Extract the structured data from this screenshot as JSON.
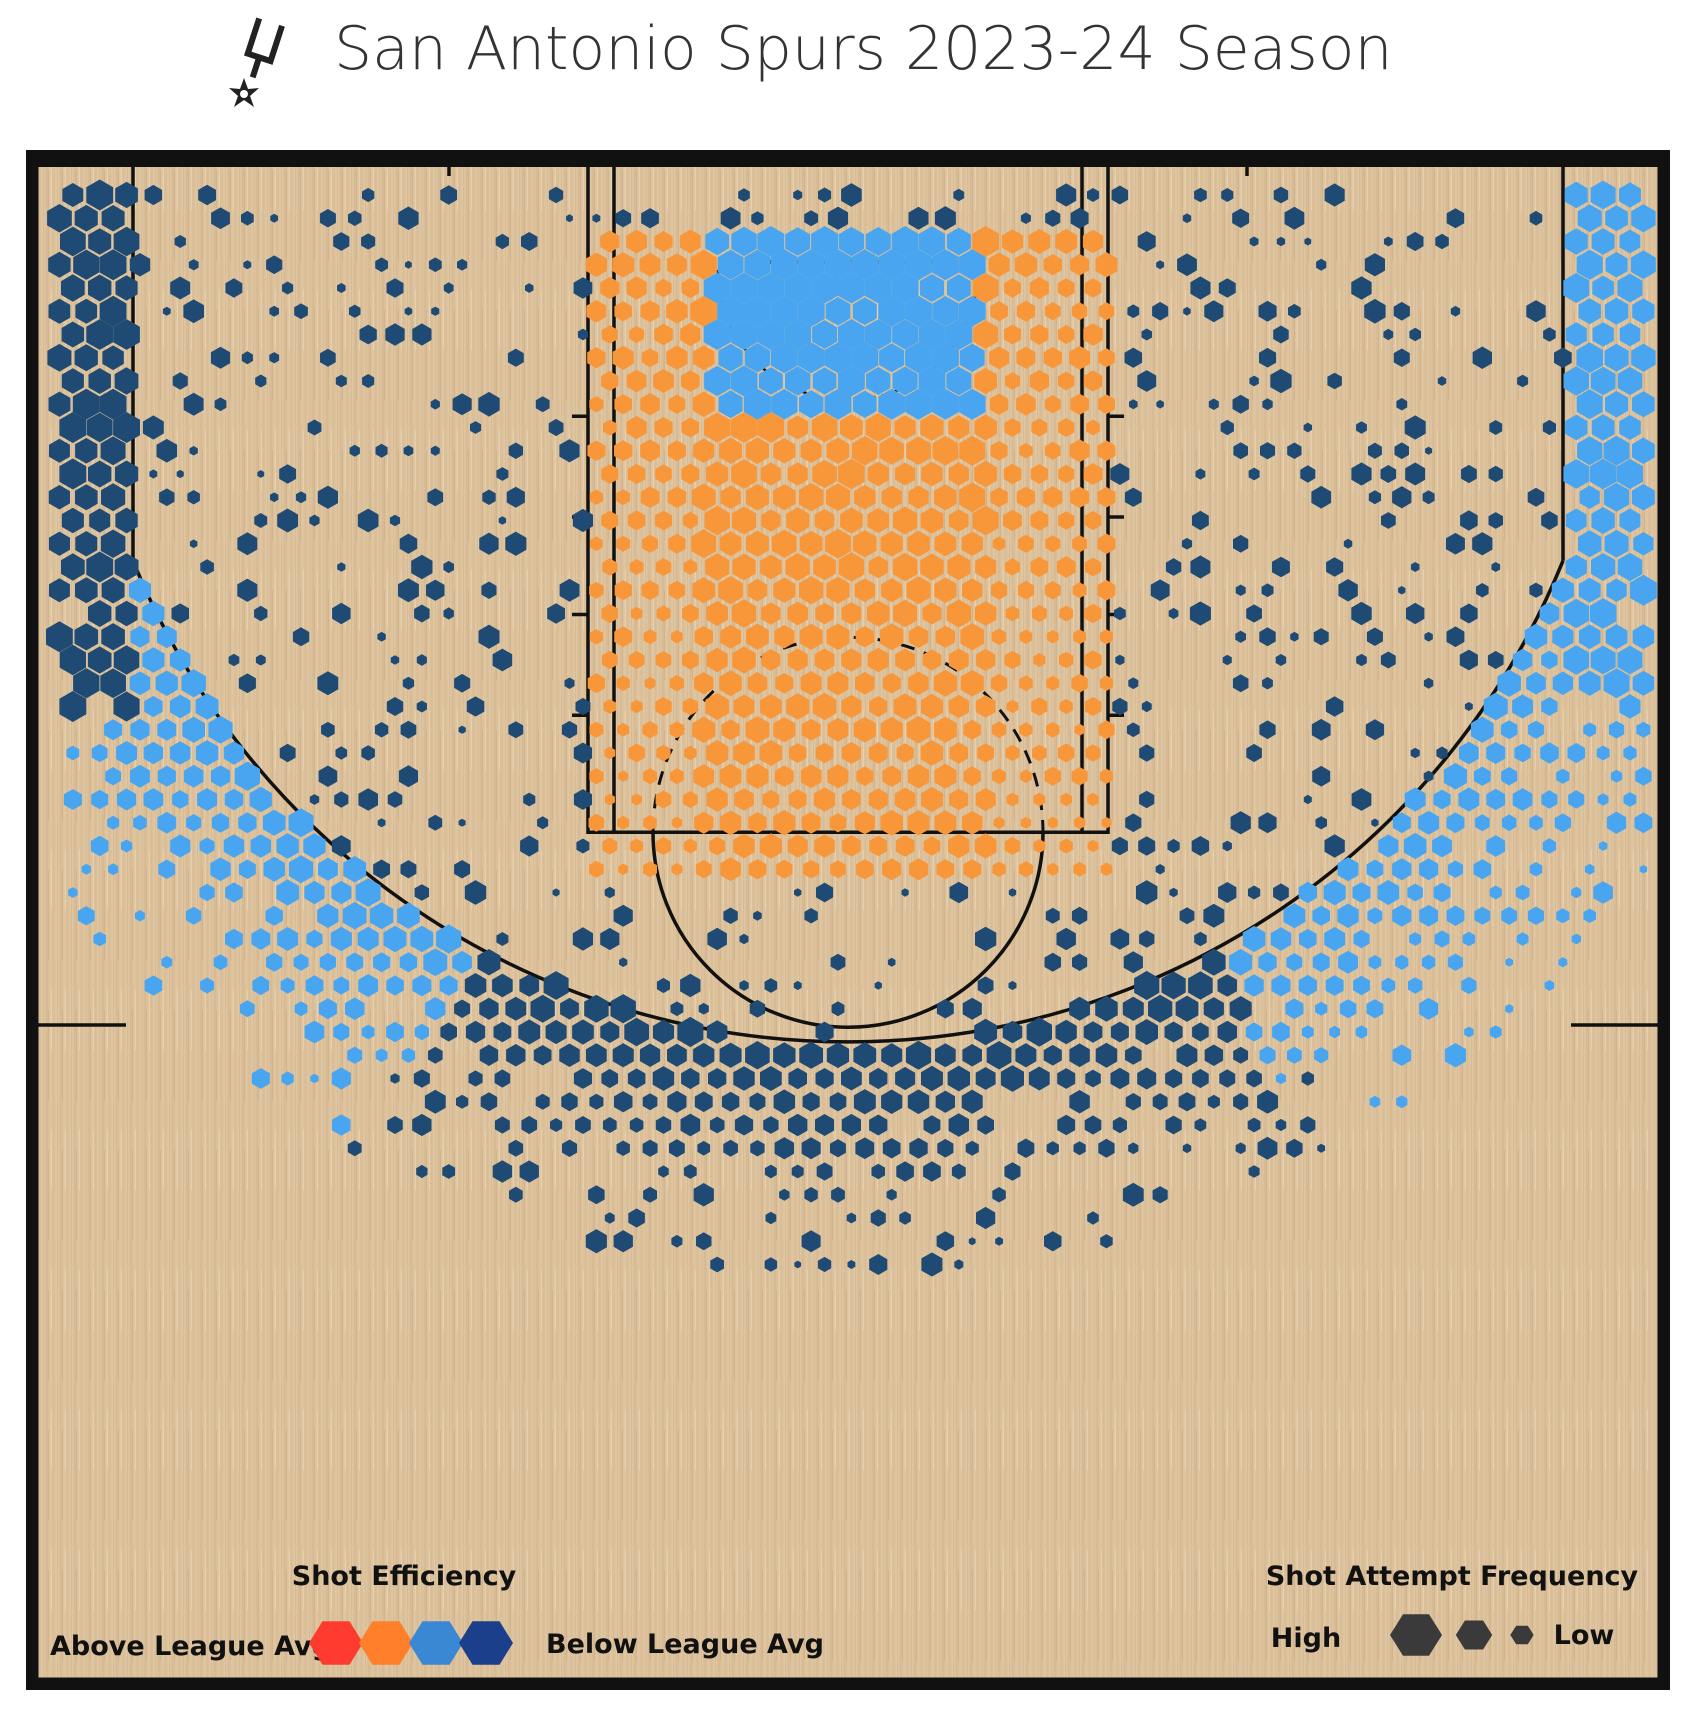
{
  "chart_data": {
    "type": "hexbin-shot-chart",
    "title": "San Antonio Spurs 2023-24 Season",
    "legend": {
      "efficiency_title": "Shot Efficiency",
      "efficiency_high_label": "Above League Avg",
      "efficiency_low_label": "Below League Avg",
      "efficiency_scale": [
        "#ff3b2f",
        "#ff7f2a",
        "#3a88d3",
        "#1b3f8a"
      ],
      "frequency_title": "Shot Attempt Frequency",
      "frequency_high_label": "High",
      "frequency_low_label": "Low",
      "frequency_scale": [
        1.0,
        0.7,
        0.45
      ]
    },
    "colors": {
      "above_avg": "#f8963a",
      "slightly_below_avg": "#4aa5f0",
      "well_below_avg": "#1e4a73",
      "court": "#dcc29e"
    },
    "zones": [
      {
        "name": "restricted-area",
        "x_ft": [
          -4,
          4
        ],
        "y_ft": [
          0,
          6
        ],
        "efficiency": "slightly_below_avg",
        "frequency": 1.0
      },
      {
        "name": "paint-non-ra",
        "x_ft": [
          -8,
          8
        ],
        "y_ft": [
          4,
          19
        ],
        "efficiency": "above_avg",
        "frequency": 0.85
      },
      {
        "name": "left-corner-three",
        "x_ft": [
          -25,
          -22
        ],
        "y_ft": [
          0,
          14
        ],
        "efficiency": "well_below_avg",
        "frequency": 0.9
      },
      {
        "name": "right-corner-three",
        "x_ft": [
          22,
          25
        ],
        "y_ft": [
          0,
          14
        ],
        "efficiency": "slightly_below_avg",
        "frequency": 0.9
      },
      {
        "name": "left-wing-three",
        "angle_deg": [
          125,
          160
        ],
        "efficiency": "slightly_below_avg",
        "frequency": 0.8
      },
      {
        "name": "top-of-key-three",
        "angle_deg": [
          60,
          120
        ],
        "efficiency": "well_below_avg",
        "frequency": 0.85
      },
      {
        "name": "right-wing-three",
        "angle_deg": [
          20,
          60
        ],
        "efficiency": "slightly_below_avg",
        "frequency": 0.75
      },
      {
        "name": "mid-range",
        "efficiency": "well_below_avg",
        "frequency": 0.35
      }
    ]
  }
}
